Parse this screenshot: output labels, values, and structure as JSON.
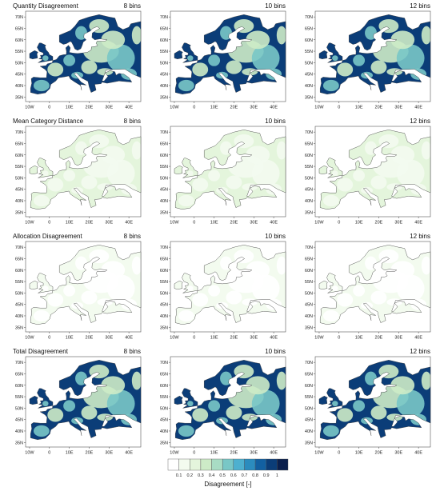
{
  "chart_data": {
    "type": "heatmap",
    "rows": [
      {
        "title": "Quantity Disagreement",
        "level": 0.85
      },
      {
        "title": "Mean Category Distance",
        "level": 0.22
      },
      {
        "title": "Allocation Disagreement",
        "level": 0.08
      },
      {
        "title": "Total Disagreement",
        "level": 0.88
      }
    ],
    "columns": [
      "8 bins",
      "10 bins",
      "12 bins"
    ],
    "x_ticks": [
      "10W",
      "0",
      "10E",
      "20E",
      "30E",
      "40E"
    ],
    "y_ticks": [
      "70N",
      "65N",
      "60N",
      "55N",
      "50N",
      "45N",
      "40N",
      "35N"
    ],
    "colorbar": {
      "label": "Disagreement [-]",
      "ticks": [
        "0.1",
        "0.2",
        "0.3",
        "0.4",
        "0.5",
        "0.6",
        "0.7",
        "0.8",
        "0.9",
        "1"
      ],
      "colors": [
        "#ffffff",
        "#f3fbef",
        "#e4f5dc",
        "#cdebc7",
        "#a8dcc4",
        "#79c7c6",
        "#4eb0cf",
        "#2b8cbe",
        "#1260a1",
        "#0b3d78",
        "#0a1f4d"
      ]
    }
  }
}
